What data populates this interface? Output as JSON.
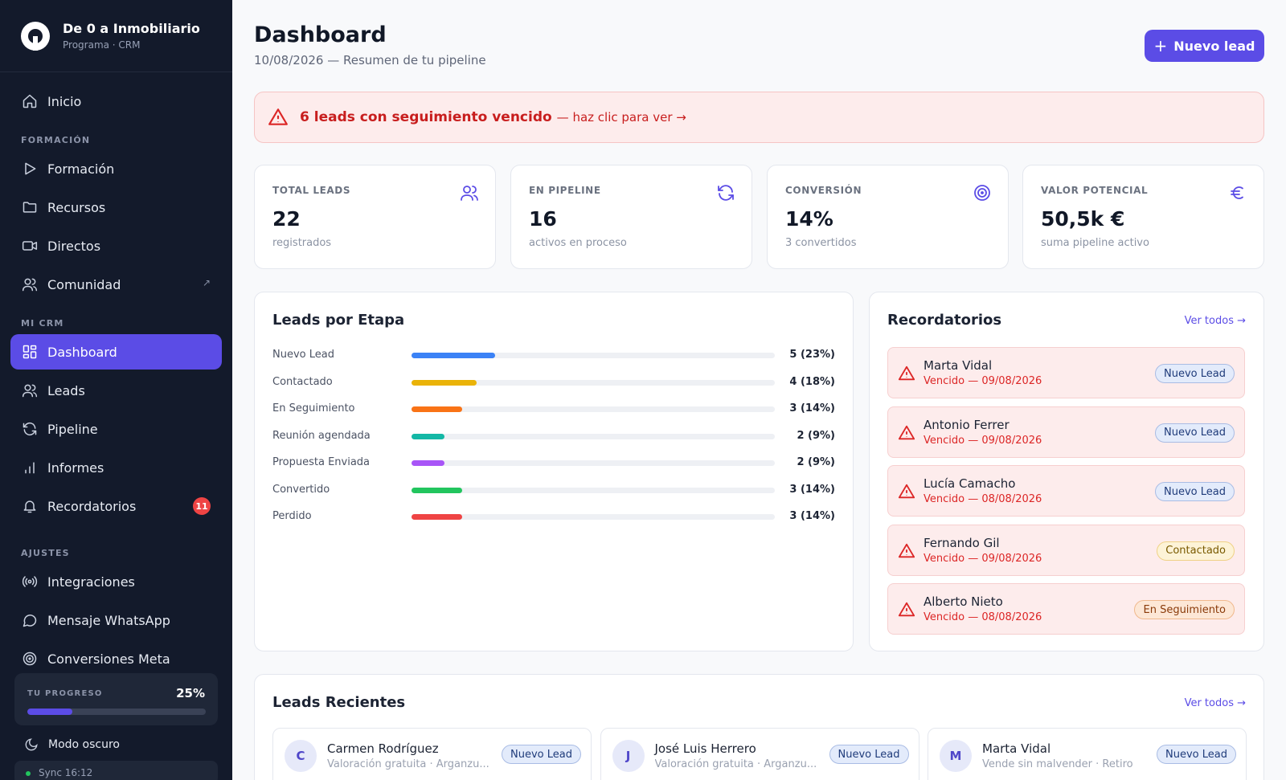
{
  "brand": {
    "name": "De 0 a Inmobiliario",
    "subtitle": "Programa · CRM"
  },
  "sidebar": {
    "items": [
      {
        "label": "Inicio",
        "icon": "home-icon"
      },
      {
        "label": "Formación",
        "icon": "play-icon"
      },
      {
        "label": "Recursos",
        "icon": "folder-icon"
      },
      {
        "label": "Directos",
        "icon": "video-icon"
      },
      {
        "label": "Comunidad",
        "icon": "users-icon",
        "external": "↗"
      },
      {
        "label": "Dashboard",
        "icon": "grid-icon",
        "active": true
      },
      {
        "label": "Leads",
        "icon": "users-icon"
      },
      {
        "label": "Pipeline",
        "icon": "refresh-icon"
      },
      {
        "label": "Informes",
        "icon": "bar-chart-icon"
      },
      {
        "label": "Recordatorios",
        "icon": "bell-icon",
        "badge": "11"
      },
      {
        "label": "Integraciones",
        "icon": "broadcast-icon"
      },
      {
        "label": "Mensaje WhatsApp",
        "icon": "chat-icon"
      },
      {
        "label": "Conversiones Meta",
        "icon": "target-icon"
      }
    ],
    "sections": {
      "formacion": "FORMACIÓN",
      "crm": "MI CRM",
      "ajustes": "AJUSTES"
    },
    "progress": {
      "label": "TU PROGRESO",
      "value": "25%",
      "fraction": 0.25
    },
    "dark_mode": "Modo oscuro",
    "sync": "Sync 16:12"
  },
  "header": {
    "title": "Dashboard",
    "subtitle": "10/08/2026 — Resumen de tu pipeline",
    "new_lead_button": "Nuevo lead"
  },
  "alert": {
    "strong": "6 leads con seguimiento vencido",
    "link": "— haz clic para ver →"
  },
  "stats": [
    {
      "label": "TOTAL LEADS",
      "value": "22",
      "sub": "registrados",
      "icon": "users-icon"
    },
    {
      "label": "EN PIPELINE",
      "value": "16",
      "sub": "activos en proceso",
      "icon": "refresh-icon"
    },
    {
      "label": "CONVERSIÓN",
      "value": "14%",
      "sub": "3 convertidos",
      "icon": "target-icon"
    },
    {
      "label": "VALOR POTENCIAL",
      "value": "50,5k €",
      "sub": "suma pipeline activo",
      "icon": "euro-icon"
    }
  ],
  "stages": {
    "title": "Leads por Etapa",
    "items": [
      {
        "name": "Nuevo Lead",
        "value": "5 (23%)",
        "fraction": 0.23,
        "color": "#3b82f6"
      },
      {
        "name": "Contactado",
        "value": "4 (18%)",
        "fraction": 0.18,
        "color": "#eab308"
      },
      {
        "name": "En Seguimiento",
        "value": "3 (14%)",
        "fraction": 0.14,
        "color": "#f97316"
      },
      {
        "name": "Reunión agendada",
        "value": "2 (9%)",
        "fraction": 0.09,
        "color": "#14b8a6"
      },
      {
        "name": "Propuesta Enviada",
        "value": "2 (9%)",
        "fraction": 0.09,
        "color": "#a855f7"
      },
      {
        "name": "Convertido",
        "value": "3 (14%)",
        "fraction": 0.14,
        "color": "#22c55e"
      },
      {
        "name": "Perdido",
        "value": "3 (14%)",
        "fraction": 0.14,
        "color": "#ef4444"
      }
    ]
  },
  "reminders": {
    "title": "Recordatorios",
    "link": "Ver todos →",
    "items": [
      {
        "name": "Marta Vidal",
        "date": "Vencido — 09/08/2026",
        "tag": "Nuevo Lead",
        "tag_type": "nuevo"
      },
      {
        "name": "Antonio Ferrer",
        "date": "Vencido — 09/08/2026",
        "tag": "Nuevo Lead",
        "tag_type": "nuevo"
      },
      {
        "name": "Lucía Camacho",
        "date": "Vencido — 08/08/2026",
        "tag": "Nuevo Lead",
        "tag_type": "nuevo"
      },
      {
        "name": "Fernando Gil",
        "date": "Vencido — 09/08/2026",
        "tag": "Contactado",
        "tag_type": "contactado"
      },
      {
        "name": "Alberto Nieto",
        "date": "Vencido — 08/08/2026",
        "tag": "En Seguimiento",
        "tag_type": "seguimiento"
      }
    ]
  },
  "recent": {
    "title": "Leads Recientes",
    "link": "Ver todos →",
    "items": [
      {
        "initial": "C",
        "name": "Carmen Rodríguez",
        "desc": "Valoración gratuita · Arganzu...",
        "tag": "Nuevo Lead"
      },
      {
        "initial": "J",
        "name": "José Luis Herrero",
        "desc": "Valoración gratuita · Arganzu...",
        "tag": "Nuevo Lead"
      },
      {
        "initial": "M",
        "name": "Marta Vidal",
        "desc": "Vende sin malvender · Retiro",
        "tag": "Nuevo Lead"
      }
    ]
  }
}
